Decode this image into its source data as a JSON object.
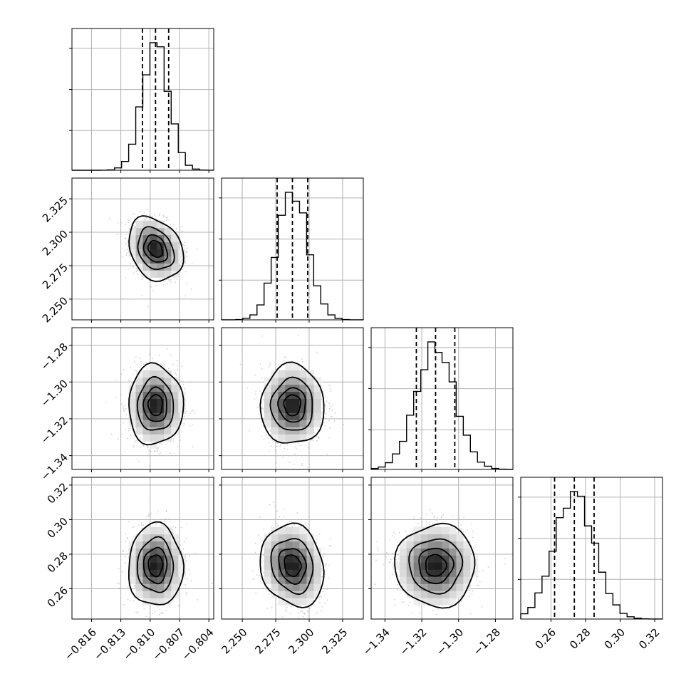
{
  "chart_data": {
    "type": "corner",
    "parameters": [
      {
        "range": [
          -0.818,
          -0.8035
        ],
        "ticks": [
          -0.816,
          -0.813,
          -0.81,
          -0.807,
          -0.804
        ],
        "tick_labels": [
          "−0.816",
          "−0.813",
          "−0.810",
          "−0.807",
          "−0.804"
        ],
        "mean": -0.80945,
        "std": 0.00135
      },
      {
        "range": [
          2.2345,
          2.3405
        ],
        "ticks": [
          2.25,
          2.275,
          2.3,
          2.325
        ],
        "tick_labels": [
          "2.250",
          "2.275",
          "2.300",
          "2.325"
        ],
        "mean": 2.2875,
        "std": 0.0115
      },
      {
        "range": [
          -1.3475,
          -1.2705
        ],
        "ticks": [
          -1.34,
          -1.32,
          -1.3,
          -1.28
        ],
        "tick_labels": [
          "−1.34",
          "−1.32",
          "−1.30",
          "−1.28"
        ],
        "mean": -1.3125,
        "std": 0.0105
      },
      {
        "range": [
          0.2425,
          0.3245
        ],
        "ticks": [
          0.26,
          0.28,
          0.3,
          0.32
        ],
        "tick_labels": [
          "0.26",
          "0.28",
          "0.30",
          "0.32"
        ],
        "mean": 0.2735,
        "std": 0.0115
      }
    ],
    "quantiles": [
      0.16,
      0.5,
      0.84
    ],
    "histogram_bins": 20,
    "correlations": {
      "1-0": -0.25,
      "2-0": 0.0,
      "2-1": 0.0,
      "3-0": 0.0,
      "3-1": -0.15,
      "3-2": 0.0
    },
    "contour_levels_sigma": [
      0.5,
      1.0,
      1.5,
      2.0
    ],
    "grid": true,
    "colors": {
      "ink": "#000000",
      "grid": "#b0b0b0",
      "scatter": "#bbbbbb"
    }
  }
}
